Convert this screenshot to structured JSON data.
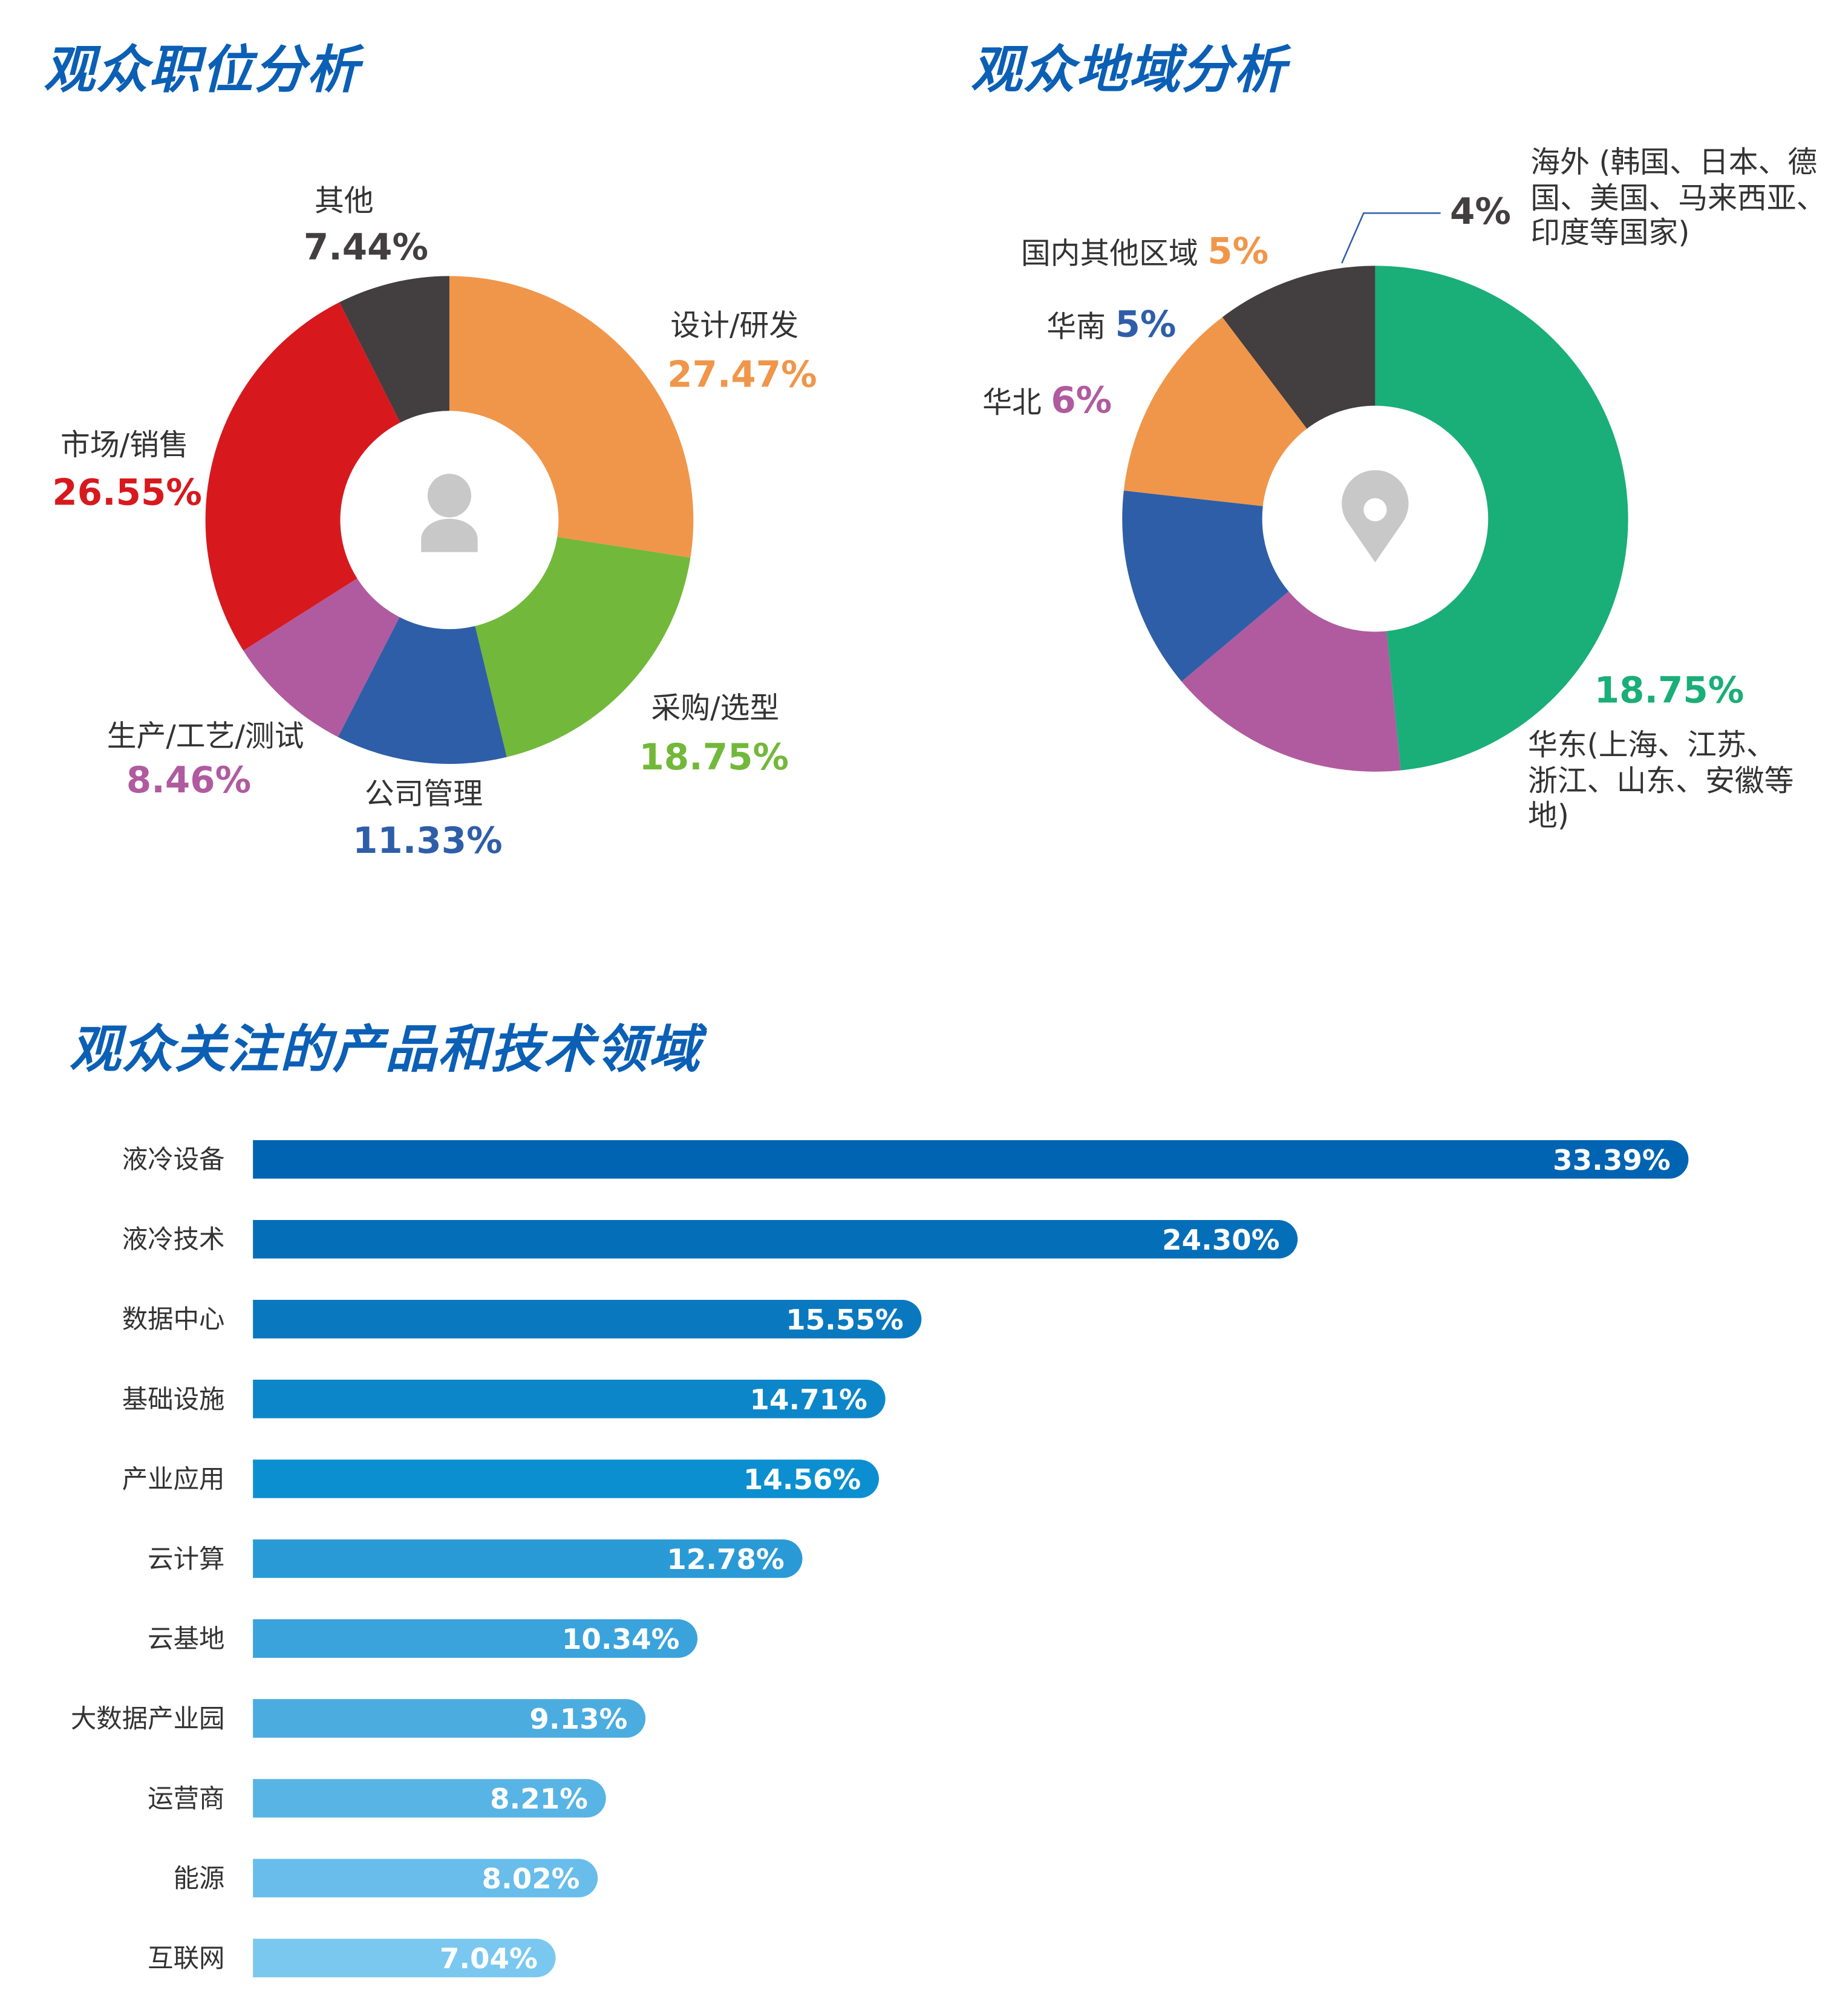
{
  "chart_data": [
    {
      "type": "donut",
      "title": "观众职位分析",
      "categories": [
        "设计/研发",
        "采购/选型",
        "公司管理",
        "生产/工艺/测试",
        "市场/销售",
        "其他"
      ],
      "values": [
        27.47,
        18.75,
        11.33,
        8.46,
        26.55,
        7.44
      ],
      "value_labels": [
        "27.47%",
        "18.75%",
        "11.33%",
        "8.46%",
        "26.55%",
        "7.44%"
      ],
      "colors": [
        "#f0964a",
        "#72b83a",
        "#2f5ea8",
        "#b05b9f",
        "#d7191e",
        "#433e3f"
      ]
    },
    {
      "type": "donut",
      "title": "观众地域分析",
      "categories": [
        "华东(上海、江苏、浙江、山东、安徽等地)",
        "华北",
        "华南",
        "国内其他区域",
        "海外 (韩国、日本、德国、美国、马来西亚、印度等国家)"
      ],
      "values": [
        18.75,
        6,
        5,
        5,
        4
      ],
      "value_labels": [
        "18.75%",
        "6%",
        "5%",
        "5%",
        "4%"
      ],
      "colors": [
        "#1aae78",
        "#b05b9f",
        "#2f5ea8",
        "#f0964a",
        "#433e3f"
      ]
    },
    {
      "type": "hbar",
      "title": "观众关注的产品和技术领域",
      "categories": [
        "液冷设备",
        "液冷技术",
        "数据中心",
        "基础设施",
        "产业应用",
        "云计算",
        "云基地",
        "大数据产业园",
        "运营商",
        "能源",
        "互联网"
      ],
      "values": [
        33.39,
        24.3,
        15.55,
        14.71,
        14.56,
        12.78,
        10.34,
        9.13,
        8.21,
        8.02,
        7.04
      ],
      "value_labels": [
        "33.39%",
        "24.30%",
        "15.55%",
        "14.71%",
        "14.56%",
        "12.78%",
        "10.34%",
        "9.13%",
        "8.21%",
        "8.02%",
        "7.04%"
      ],
      "colors": [
        "#0064b2",
        "#056eb8",
        "#0a78bf",
        "#0c86c8",
        "#0b8fd0",
        "#2a9ad6",
        "#3aa3dc",
        "#4aacdf",
        "#58b4e4",
        "#68bdea",
        "#7ac8f0"
      ]
    }
  ]
}
